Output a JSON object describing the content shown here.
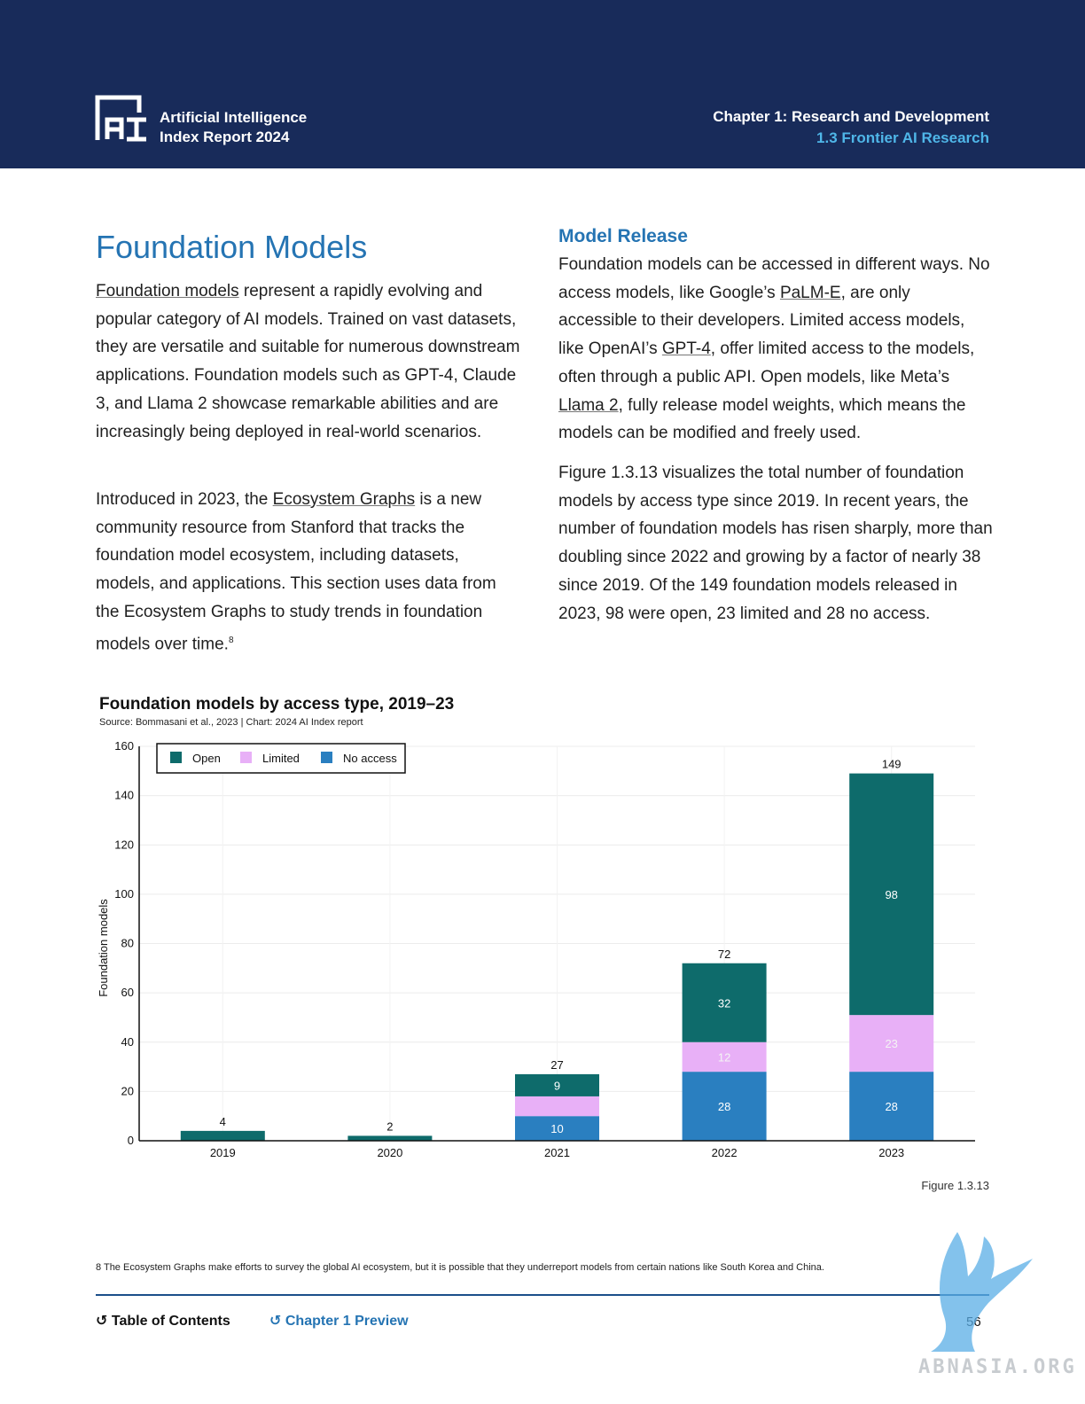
{
  "header": {
    "logo_line1": "Artificial Intelligence",
    "logo_line2": "Index Report 2024",
    "chapter": "Chapter 1: Research and Development",
    "section": "1.3 Frontier AI Research"
  },
  "left": {
    "heading": "Foundation Models",
    "p1_link": "Foundation models",
    "p1_rest": " represent a rapidly evolving and popular category of AI models. Trained on vast datasets, they are versatile and suitable for numerous downstream applications. Foundation models such as GPT-4, Claude 3, and Llama 2 showcase remarkable abilities and are increasingly being deployed in real-world scenarios.",
    "p2_a": "Introduced in 2023, the ",
    "p2_link": "Ecosystem Graphs",
    "p2_b": " is a new community resource from Stanford that tracks the foundation model ecosystem, including datasets, models, and applications. This section uses data from the Ecosystem Graphs to study trends in foundation models over time.",
    "p2_sup": "8"
  },
  "right": {
    "heading": "Model Release",
    "p1_a": "Foundation models can be accessed in different ways. No access models, like Google’s ",
    "p1_link1": "PaLM-E",
    "p1_b": ", are only accessible to their developers. Limited access models, like OpenAI’s ",
    "p1_link2": "GPT-4",
    "p1_c": ", offer limited access to the models, often through a public API. Open models, like Meta’s ",
    "p1_link3": "Llama 2",
    "p1_d": ", fully release model weights, which means the models can be modified and freely used.",
    "p2": "Figure 1.3.13 visualizes the total number of foundation models by access type since 2019. In recent years, the number of foundation models has risen sharply, more than doubling since 2022 and growing by a factor of nearly 38 since 2019. Of the 149 foundation models released in 2023, 98 were open, 23 limited and 28 no access."
  },
  "chart_data": {
    "type": "bar",
    "stacked": true,
    "title": "Foundation models by access type, 2019–23",
    "source": "Source: Bommasani et al., 2023 | Chart: 2024 AI Index report",
    "xlabel": "",
    "ylabel": "Foundation models",
    "ylim": [
      0,
      160
    ],
    "yticks": [
      0,
      20,
      40,
      60,
      80,
      100,
      120,
      140,
      160
    ],
    "grid": true,
    "legend_position": "top-left",
    "categories": [
      "2019",
      "2020",
      "2021",
      "2022",
      "2023"
    ],
    "series": [
      {
        "name": "No access",
        "color": "#2a7fc0",
        "values": [
          0,
          0,
          10,
          28,
          28
        ],
        "labels": [
          "",
          "",
          "10",
          "28",
          "28"
        ]
      },
      {
        "name": "Limited",
        "color": "#e8b0f7",
        "values": [
          0,
          0,
          8,
          12,
          23
        ],
        "labels": [
          "",
          "",
          "",
          "12",
          "23"
        ]
      },
      {
        "name": "Open",
        "color": "#0e6b6b",
        "values": [
          4,
          2,
          9,
          32,
          98
        ],
        "labels": [
          "",
          "",
          "9",
          "32",
          "98"
        ]
      }
    ],
    "legend_order": [
      "Open",
      "Limited",
      "No access"
    ],
    "totals": [
      4,
      2,
      27,
      72,
      149
    ]
  },
  "figure_label": "Figure 1.3.13",
  "footnote": "8 The Ecosystem Graphs make efforts to survey the global AI ecosystem, but it is possible that they underreport models from certain nations like South Korea and China.",
  "footer": {
    "toc": "Table of Contents",
    "chapter_preview": "Chapter 1 Preview",
    "page": "56"
  },
  "watermark": "ABNASIA.ORG"
}
